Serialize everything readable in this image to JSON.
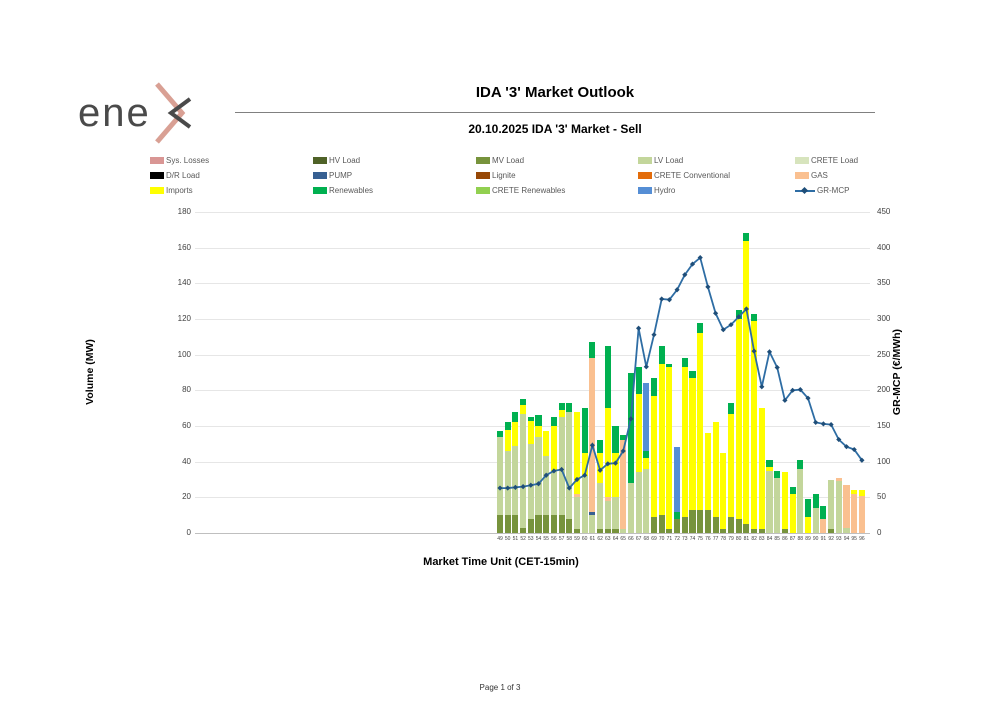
{
  "header": {
    "logo_text": "ene",
    "title": "IDA '3' Market Outlook",
    "subtitle": "20.10.2025  IDA '3' Market - Sell"
  },
  "footer": {
    "page_label": "Page 1 of 3"
  },
  "legend": {
    "items": [
      {
        "label": "Sys. Losses",
        "color": "#D99694",
        "type": "box"
      },
      {
        "label": "HV Load",
        "color": "#4F6228",
        "type": "box"
      },
      {
        "label": "MV Load",
        "color": "#77933C",
        "type": "box"
      },
      {
        "label": "LV Load",
        "color": "#C3D69B",
        "type": "box"
      },
      {
        "label": "CRETE Load",
        "color": "#D7E4BD",
        "type": "box"
      },
      {
        "label": "D/R Load",
        "color": "#000000",
        "type": "box"
      },
      {
        "label": "PUMP",
        "color": "#376092",
        "type": "box"
      },
      {
        "label": "Lignite",
        "color": "#974806",
        "type": "box"
      },
      {
        "label": "CRETE Conventional",
        "color": "#E36C0A",
        "type": "box"
      },
      {
        "label": "GAS",
        "color": "#FAC090",
        "type": "box"
      },
      {
        "label": "Imports",
        "color": "#FFFF00",
        "type": "box"
      },
      {
        "label": "Renewables",
        "color": "#00B050",
        "type": "box"
      },
      {
        "label": "CRETE Renewables",
        "color": "#92D050",
        "type": "box"
      },
      {
        "label": "Hydro",
        "color": "#558ED5",
        "type": "box"
      },
      {
        "label": "GR-MCP",
        "color": "#2E6DA4",
        "marker_color": "#1F4E79",
        "type": "line"
      }
    ]
  },
  "chart_data": {
    "type": "bar",
    "subtype": "stacked-bar-with-line-overlay",
    "title": "IDA '3' Market Outlook",
    "subtitle": "20.10.2025  IDA '3' Market - Sell",
    "xlabel": "Market Time Unit (CET-15min)",
    "ylabel_left": "Volume (MW)",
    "ylabel_right": "GR-MCP (€/MWh)",
    "grid": true,
    "legend_position": "top",
    "y_left": {
      "min": 0,
      "max": 180,
      "ticks": [
        "0",
        "20",
        "40",
        "60",
        "80",
        "100",
        "120",
        "140",
        "160",
        "180"
      ]
    },
    "y_right": {
      "min": 0,
      "max": 450,
      "ticks": [
        "0",
        "50",
        "100",
        "150",
        "200",
        "250",
        "300",
        "350",
        "400",
        "450"
      ]
    },
    "categories": [
      "49",
      "50",
      "51",
      "52",
      "53",
      "54",
      "55",
      "56",
      "57",
      "58",
      "59",
      "60",
      "61",
      "62",
      "63",
      "64",
      "65",
      "66",
      "67",
      "68",
      "69",
      "70",
      "71",
      "72",
      "73",
      "74",
      "75",
      "76",
      "77",
      "78",
      "79",
      "80",
      "81",
      "82",
      "83",
      "84",
      "85",
      "86",
      "87",
      "88",
      "89",
      "90",
      "91",
      "92",
      "93",
      "94",
      "95",
      "96"
    ],
    "series": [
      {
        "name": "MV Load",
        "color": "#77933C",
        "values": [
          10,
          10,
          10,
          3,
          8,
          10,
          10,
          10,
          10,
          8,
          2,
          0,
          0,
          2,
          2,
          2,
          0,
          0,
          0,
          0,
          9,
          10,
          2,
          8,
          9,
          13,
          13,
          13,
          9,
          2,
          9,
          8,
          5,
          2,
          2,
          0,
          0,
          2,
          0,
          0,
          0,
          0,
          0,
          2,
          0,
          0,
          0,
          0
        ]
      },
      {
        "name": "LV Load",
        "color": "#C3D69B",
        "values": [
          44,
          36,
          39,
          64,
          42,
          44,
          33,
          25,
          55,
          60,
          18,
          32,
          10,
          26,
          16,
          18,
          2,
          28,
          34,
          36,
          0,
          0,
          0,
          0,
          0,
          0,
          0,
          0,
          0,
          0,
          0,
          0,
          0,
          0,
          0,
          35,
          31,
          0,
          0,
          36,
          0,
          14,
          0,
          28,
          29,
          3,
          0,
          0
        ]
      },
      {
        "name": "PUMP",
        "color": "#376092",
        "values": [
          0,
          0,
          0,
          0,
          0,
          0,
          0,
          0,
          0,
          0,
          0,
          0,
          2,
          0,
          0,
          0,
          0,
          0,
          0,
          0,
          0,
          0,
          0,
          0,
          0,
          0,
          0,
          0,
          0,
          0,
          0,
          0,
          0,
          0,
          0,
          0,
          0,
          0,
          0,
          0,
          0,
          0,
          0,
          0,
          0,
          0,
          0,
          0
        ]
      },
      {
        "name": "GAS",
        "color": "#FAC090",
        "values": [
          0,
          0,
          0,
          0,
          0,
          0,
          0,
          0,
          0,
          0,
          2,
          0,
          86,
          0,
          2,
          0,
          50,
          0,
          0,
          0,
          0,
          0,
          0,
          0,
          0,
          0,
          0,
          0,
          0,
          0,
          0,
          0,
          0,
          0,
          0,
          0,
          0,
          0,
          0,
          0,
          0,
          0,
          8,
          0,
          2,
          24,
          22,
          21
        ]
      },
      {
        "name": "Imports",
        "color": "#FFFF00",
        "values": [
          0,
          12,
          13,
          5,
          13,
          6,
          14,
          25,
          4,
          0,
          46,
          13,
          0,
          17,
          50,
          25,
          0,
          0,
          44,
          6,
          68,
          85,
          91,
          0,
          84,
          74,
          99,
          43,
          53,
          43,
          58,
          112,
          159,
          117,
          68,
          2,
          0,
          32,
          22,
          0,
          9,
          0,
          0,
          0,
          0,
          0,
          2,
          3
        ]
      },
      {
        "name": "Renewables",
        "color": "#00B050",
        "values": [
          3,
          4,
          6,
          3,
          2,
          6,
          0,
          5,
          4,
          5,
          0,
          25,
          9,
          7,
          35,
          15,
          3,
          62,
          15,
          4,
          10,
          10,
          2,
          4,
          5,
          4,
          6,
          0,
          0,
          0,
          6,
          5,
          4,
          4,
          0,
          4,
          4,
          0,
          4,
          5,
          10,
          8,
          7,
          0,
          0,
          0,
          0,
          0
        ]
      },
      {
        "name": "Hydro",
        "color": "#558ED5",
        "values": [
          0,
          0,
          0,
          0,
          0,
          0,
          0,
          0,
          0,
          0,
          0,
          0,
          0,
          0,
          0,
          0,
          0,
          0,
          0,
          38,
          0,
          0,
          0,
          36,
          0,
          0,
          0,
          0,
          0,
          0,
          0,
          0,
          0,
          0,
          0,
          0,
          0,
          0,
          0,
          0,
          0,
          0,
          0,
          0,
          0,
          0,
          0,
          0
        ]
      }
    ],
    "line_series": {
      "name": "GR-MCP",
      "color": "#2E6DA4",
      "marker_color": "#1F4E79",
      "values": [
        63,
        63,
        64,
        65,
        67,
        69,
        81,
        87,
        89,
        63,
        75,
        81,
        123,
        88,
        97,
        98,
        115,
        160,
        287,
        233,
        278,
        328,
        327,
        341,
        362,
        377,
        386,
        345,
        308,
        285,
        292,
        303,
        314,
        255,
        205,
        254,
        232,
        186,
        200,
        201,
        189,
        155,
        153,
        152,
        131,
        121,
        117,
        102
      ]
    }
  }
}
